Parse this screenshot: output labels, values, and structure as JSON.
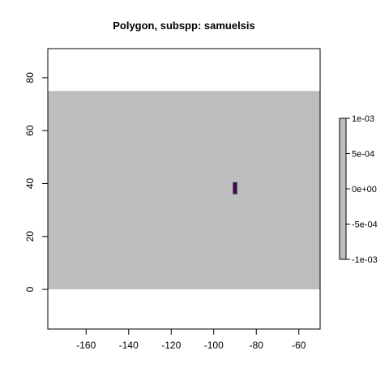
{
  "chart_data": {
    "type": "heatmap",
    "title": "Polygon, subspp: samuelsis",
    "xlabel": "",
    "ylabel": "",
    "xlim": [
      -178,
      -50
    ],
    "ylim": [
      -15,
      91
    ],
    "x_ticks": [
      -160,
      -140,
      -120,
      -100,
      -80,
      -60
    ],
    "y_ticks": [
      0,
      20,
      40,
      60,
      80
    ],
    "raster_extent": {
      "x": [
        -178,
        -50
      ],
      "y": [
        0,
        75
      ]
    },
    "raster_color": "#bebebe",
    "cell_color": "#3b0f4c",
    "polygon_cell": {
      "x": [
        -91,
        -89
      ],
      "y": [
        36,
        40.5
      ]
    },
    "legend": {
      "position": "right",
      "range": [
        -0.001,
        0.001
      ],
      "labels": [
        "1e-03",
        "5e-04",
        "0e+00",
        "-5e-04",
        "-1e-03"
      ],
      "values": [
        0.001,
        0.0005,
        0,
        -0.0005,
        -0.001
      ],
      "fill_color": "#bebebe"
    }
  }
}
